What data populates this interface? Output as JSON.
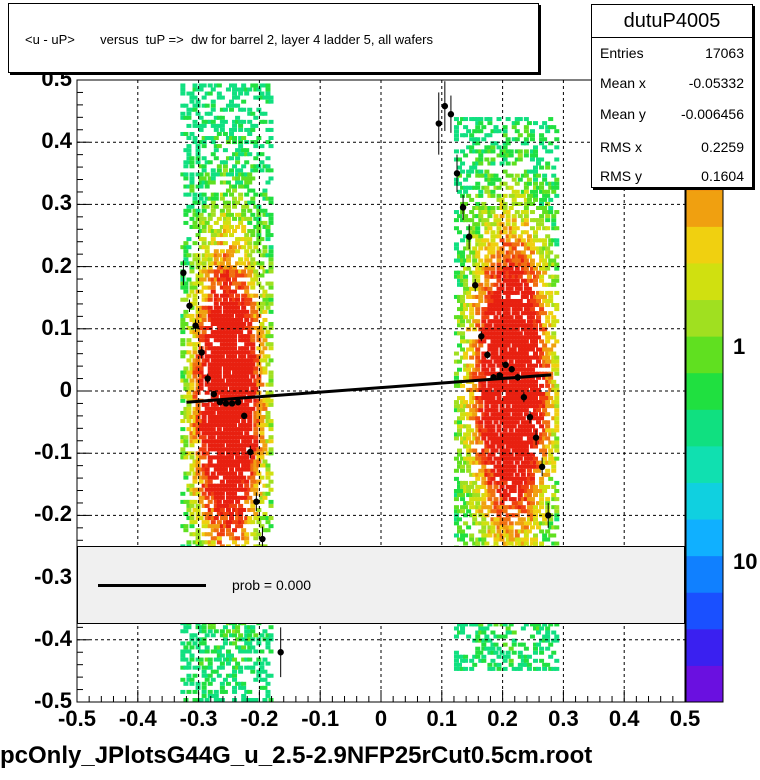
{
  "chart_data": {
    "type": "scatter",
    "title": "<u - uP>       versus  tuP =>  dw for barrel 2, layer 4 ladder 5, all wafers",
    "xlim": [
      -0.5,
      0.5
    ],
    "ylim": [
      -0.5,
      0.5
    ],
    "x_ticks": [
      "-0.5",
      "-0.4",
      "-0.3",
      "-0.2",
      "-0.1",
      "0",
      "0.1",
      "0.2",
      "0.3",
      "0.4",
      "0.5"
    ],
    "y_ticks": [
      "-0.5",
      "-0.4",
      "-0.3",
      "-0.2",
      "-0.1",
      "0",
      "0.1",
      "0.2",
      "0.3",
      "0.4",
      "0.5"
    ],
    "grid": true,
    "z_axis_ticks": [
      "1",
      "10"
    ],
    "profile_points": [
      {
        "x": -0.325,
        "y": 0.19,
        "err": 0.02
      },
      {
        "x": -0.315,
        "y": 0.137,
        "err": 0.01
      },
      {
        "x": -0.305,
        "y": 0.105,
        "err": 0.01
      },
      {
        "x": -0.295,
        "y": 0.062,
        "err": 0.01
      },
      {
        "x": -0.285,
        "y": 0.02,
        "err": 0.008
      },
      {
        "x": -0.275,
        "y": -0.005,
        "err": 0.005
      },
      {
        "x": -0.265,
        "y": -0.018,
        "err": 0.005
      },
      {
        "x": -0.255,
        "y": -0.02,
        "err": 0.005
      },
      {
        "x": -0.245,
        "y": -0.02,
        "err": 0.005
      },
      {
        "x": -0.235,
        "y": -0.018,
        "err": 0.005
      },
      {
        "x": -0.225,
        "y": -0.04,
        "err": 0.005
      },
      {
        "x": -0.215,
        "y": -0.098,
        "err": 0.01
      },
      {
        "x": -0.205,
        "y": -0.178,
        "err": 0.015
      },
      {
        "x": -0.195,
        "y": -0.238,
        "err": 0.02
      },
      {
        "x": -0.165,
        "y": -0.42,
        "err": 0.04
      },
      {
        "x": 0.095,
        "y": 0.43,
        "err": 0.05
      },
      {
        "x": 0.105,
        "y": 0.458,
        "err": 0.04
      },
      {
        "x": 0.115,
        "y": 0.445,
        "err": 0.03
      },
      {
        "x": 0.125,
        "y": 0.35,
        "err": 0.03
      },
      {
        "x": 0.135,
        "y": 0.295,
        "err": 0.02
      },
      {
        "x": 0.145,
        "y": 0.248,
        "err": 0.02
      },
      {
        "x": 0.155,
        "y": 0.17,
        "err": 0.01
      },
      {
        "x": 0.165,
        "y": 0.088,
        "err": 0.008
      },
      {
        "x": 0.175,
        "y": 0.058,
        "err": 0.006
      },
      {
        "x": 0.185,
        "y": 0.022,
        "err": 0.005
      },
      {
        "x": 0.195,
        "y": 0.025,
        "err": 0.005
      },
      {
        "x": 0.205,
        "y": 0.042,
        "err": 0.005
      },
      {
        "x": 0.215,
        "y": 0.035,
        "err": 0.005
      },
      {
        "x": 0.225,
        "y": 0.022,
        "err": 0.006
      },
      {
        "x": 0.235,
        "y": -0.01,
        "err": 0.008
      },
      {
        "x": 0.245,
        "y": -0.042,
        "err": 0.01
      },
      {
        "x": 0.255,
        "y": -0.075,
        "err": 0.012
      },
      {
        "x": 0.265,
        "y": -0.122,
        "err": 0.015
      },
      {
        "x": 0.275,
        "y": -0.2,
        "err": 0.02
      }
    ],
    "fit_line": {
      "x1": -0.32,
      "y1": -0.018,
      "x2": 0.28,
      "y2": 0.026
    },
    "bands": [
      {
        "xmin": -0.33,
        "xmax": -0.18,
        "ymin": -0.5,
        "ymax": 0.49,
        "center_x": -0.255,
        "center_y": -0.02
      },
      {
        "xmin": 0.12,
        "xmax": 0.29,
        "ymin": -0.45,
        "ymax": 0.44,
        "center_x": 0.21,
        "center_y": 0.01
      }
    ]
  },
  "title": "<u - uP>       versus  tuP =>  dw for barrel 2, layer 4 ladder 5, all wafers",
  "stats": {
    "name": "dutuP4005",
    "rows": [
      {
        "label": "Entries",
        "value": "17063"
      },
      {
        "label": "Mean x",
        "value": "-0.05332"
      },
      {
        "label": "Mean y",
        "value": "-0.006456"
      },
      {
        "label": "RMS x",
        "value": "0.2259"
      },
      {
        "label": "RMS y",
        "value": "0.1604"
      }
    ]
  },
  "legend": {
    "label": "prob = 0.000"
  },
  "footer": "pcOnly_JPlotsG44G_u_2.5-2.9NFP25rCut0.5cm.root",
  "colors": {
    "palette": [
      "#6a10e0",
      "#3a20f0",
      "#1a50ff",
      "#1080ff",
      "#10b0ff",
      "#10d0e0",
      "#10e0b0",
      "#10e080",
      "#20e040",
      "#60e020",
      "#a0e020",
      "#d0e010",
      "#f0d010",
      "#f0a010",
      "#f07010",
      "#f04010",
      "#e82010"
    ]
  }
}
